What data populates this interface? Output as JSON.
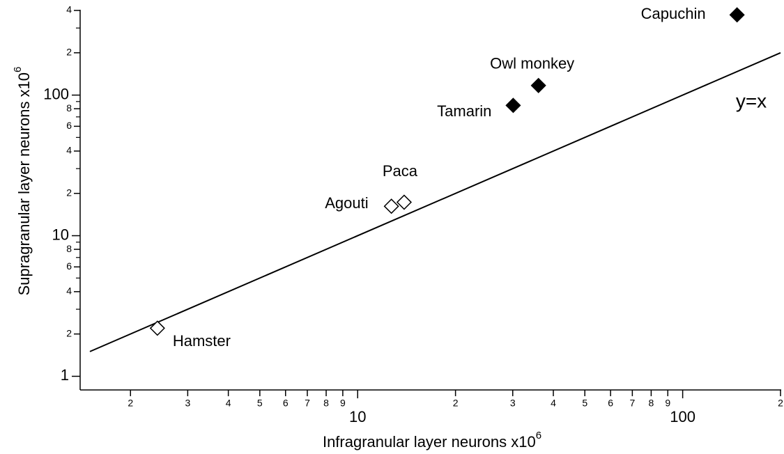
{
  "chart_data": {
    "type": "scatter",
    "x_label": "Infragranular layer neurons x10",
    "x_label_exponent": "6",
    "y_label": "Supragranular layer neurons x10",
    "y_label_exponent": "6",
    "x_log": true,
    "y_log": true,
    "xlim": [
      1.4,
      200
    ],
    "ylim": [
      0.8,
      400
    ],
    "xticks": [
      2,
      3,
      4,
      5,
      6,
      7,
      8,
      9,
      10,
      {
        "value": 20,
        "label": "2"
      },
      {
        "value": 30,
        "label": "3"
      },
      {
        "value": 40,
        "label": "4"
      },
      {
        "value": 50,
        "label": "5"
      },
      {
        "value": 60,
        "label": "6"
      },
      {
        "value": 70,
        "label": "7"
      },
      {
        "value": 80,
        "label": "8"
      },
      {
        "value": 90,
        "label": "9"
      },
      100,
      {
        "value": 200,
        "label": "2"
      }
    ],
    "yticks": [
      1,
      2,
      4,
      6,
      8,
      10,
      {
        "value": 20,
        "label": "2"
      },
      {
        "value": 40,
        "label": "4"
      },
      {
        "value": 60,
        "label": "6"
      },
      {
        "value": 80,
        "label": "8"
      },
      100,
      {
        "value": 200,
        "label": "2"
      },
      {
        "value": 400,
        "label": "4"
      }
    ],
    "y_minor_ticks": [
      3,
      5,
      7,
      9,
      30,
      50,
      70,
      90,
      300
    ],
    "series": [
      {
        "marker": "open-diamond",
        "color": "#000000",
        "labels": [
          "Hamster",
          "Agouti",
          "Paca"
        ],
        "x": [
          2.42,
          12.7,
          13.9
        ],
        "values": [
          2.2,
          16.2,
          17.3
        ]
      },
      {
        "marker": "filled-diamond",
        "color": "#000000",
        "labels": [
          "Tamarin",
          "Owl monkey",
          "Capuchin"
        ],
        "x": [
          30.1,
          36,
          147
        ],
        "values": [
          84.5,
          117,
          372
        ]
      }
    ],
    "reference_line": {
      "label": "y=x",
      "x": [
        1.5,
        200
      ],
      "values": [
        1.5,
        200
      ]
    }
  }
}
